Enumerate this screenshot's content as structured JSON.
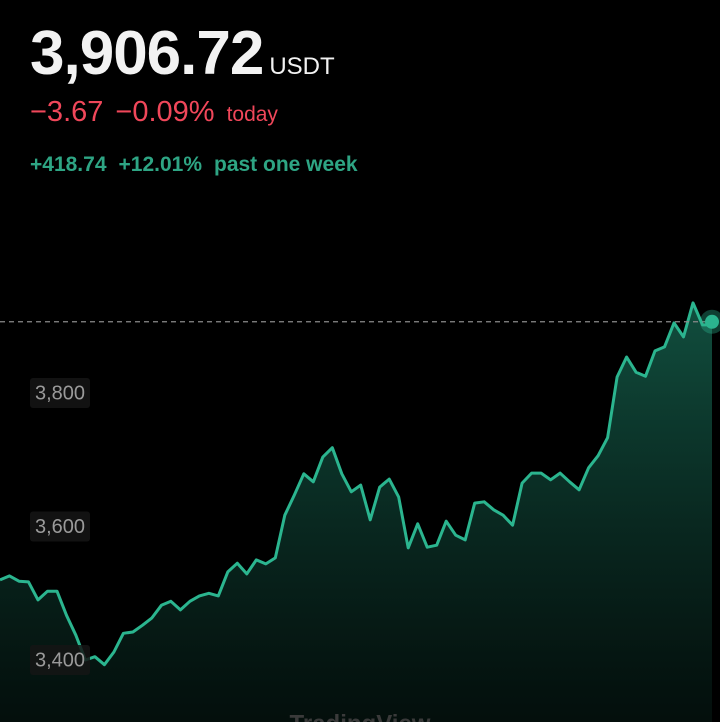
{
  "header": {
    "price": "3,906.72",
    "currency": "USDT",
    "today_change": "−3.67",
    "today_percent": "−0.09%",
    "today_label": "today",
    "week_change": "+418.74",
    "week_percent": "+12.01%",
    "week_label": "past one week"
  },
  "chart_data": {
    "type": "area",
    "color": "#2bb58f",
    "values": [
      3520,
      3526,
      3518,
      3517,
      3490,
      3503,
      3503,
      3467,
      3437,
      3400,
      3405,
      3393,
      3412,
      3440,
      3442,
      3452,
      3463,
      3482,
      3488,
      3475,
      3488,
      3496,
      3500,
      3496,
      3532,
      3545,
      3529,
      3550,
      3544,
      3553,
      3617,
      3647,
      3679,
      3667,
      3704,
      3718,
      3679,
      3652,
      3662,
      3610,
      3659,
      3671,
      3644,
      3568,
      3604,
      3569,
      3572,
      3608,
      3587,
      3580,
      3635,
      3637,
      3625,
      3617,
      3602,
      3665,
      3680,
      3680,
      3670,
      3680,
      3667,
      3655,
      3688,
      3706,
      3733,
      3824,
      3854,
      3831,
      3825,
      3863,
      3869,
      3905,
      3884,
      3935,
      3902,
      3902
    ],
    "ylim": [
      3300,
      4000
    ],
    "yticks": [
      {
        "value": 3400,
        "label": "3,400"
      },
      {
        "value": 3600,
        "label": "3,600"
      },
      {
        "value": 3800,
        "label": "3,800"
      }
    ],
    "last_value": 3906.72,
    "watermark": "TradingView"
  }
}
